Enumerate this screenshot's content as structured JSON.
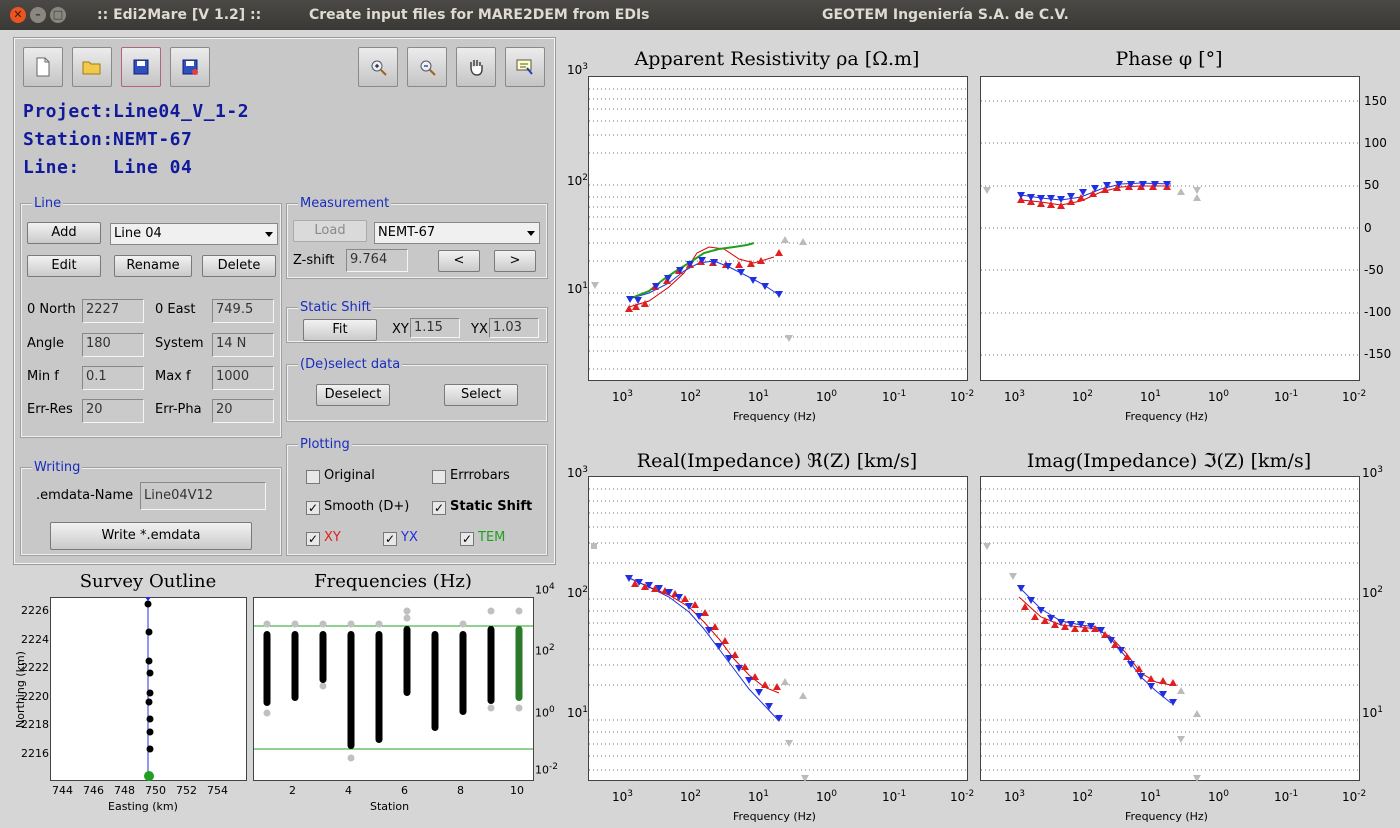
{
  "window": {
    "title_app": ":: Edi2Mare [V 1.2] ::",
    "title_desc": "Create input files for MARE2DEM from EDIs",
    "title_company": "GEOTEM Ingeniería S.A. de C.V."
  },
  "toolbar": {
    "icons": [
      "new-file-icon",
      "open-folder-icon",
      "save-icon",
      "save-as-icon",
      "zoom-in-icon",
      "zoom-out-icon",
      "pan-hand-icon",
      "data-cursor-icon"
    ]
  },
  "info": {
    "project_label": "Project:",
    "project_value": "Line04_V_1-2",
    "station_label": "Station:",
    "station_value": "NEMT-67",
    "line_label": "Line:",
    "line_value": "Line 04"
  },
  "line_group": {
    "title": "Line",
    "add": "Add",
    "edit": "Edit",
    "rename": "Rename",
    "delete": "Delete",
    "selected": "Line 04",
    "north_label": "0 North",
    "north": "2227",
    "east_label": "0 East",
    "east": "749.5",
    "angle_label": "Angle",
    "angle": "180",
    "system_label": "System",
    "system": "14 N",
    "minf_label": "Min f",
    "minf": "0.1",
    "maxf_label": "Max f",
    "maxf": "1000",
    "errres_label": "Err-Res",
    "errres": "20",
    "errpha_label": "Err-Pha",
    "errpha": "20"
  },
  "measurement": {
    "title": "Measurement",
    "load": "Load",
    "selected": "NEMT-67",
    "zshift_label": "Z-shift",
    "zshift": "9.764",
    "prev": "<",
    "next": ">"
  },
  "static_shift": {
    "title": "Static Shift",
    "fit": "Fit",
    "xy_label": "XY",
    "xy": "1.15",
    "yx_label": "YX",
    "yx": "1.03"
  },
  "deselect": {
    "title": "(De)select data",
    "deselect": "Deselect",
    "select": "Select"
  },
  "plotting": {
    "title": "Plotting",
    "original": "Original",
    "errorbars": "Errrobars",
    "smooth": "Smooth (D+)",
    "static": "Static Shift",
    "xy": "XY",
    "yx": "YX",
    "tem": "TEM",
    "colors": {
      "xy": "#e02020",
      "yx": "#2030e0",
      "tem": "#20a020"
    }
  },
  "writing": {
    "title": "Writing",
    "name_label": ".emdata-Name",
    "name": "Line04V12",
    "write": "Write *.emdata"
  },
  "plots": {
    "apparent_resistivity": {
      "title": "Apparent Resistivity   ρa   [Ω.m]",
      "xlabel": "Frequency (Hz)",
      "y_ticks": [
        "10",
        "10",
        "10"
      ],
      "y_exps": [
        "3",
        "2",
        "1"
      ]
    },
    "phase": {
      "title": "Phase   φ   [°]",
      "xlabel": "Frequency (Hz)",
      "y_ticks": [
        "150",
        "100",
        "50",
        "0",
        "-50",
        "-100",
        "-150"
      ]
    },
    "real_impedance": {
      "title": "Real(Impedance)   ℜ(Z)   [km/s]",
      "xlabel": "Frequency (Hz)",
      "y_ticks": [
        "10",
        "10",
        "10"
      ],
      "y_exps": [
        "3",
        "2",
        "1"
      ]
    },
    "imag_impedance": {
      "title": "Imag(Impedance)   ℑ(Z)   [km/s]",
      "xlabel": "Frequency (Hz)",
      "y_ticks": [
        "10",
        "10",
        "10"
      ],
      "y_exps": [
        "3",
        "2",
        "1"
      ]
    },
    "x_ticks": [
      "10",
      "10",
      "10",
      "10",
      "10",
      "10"
    ],
    "x_exps": [
      "3",
      "2",
      "1",
      "0",
      "-1",
      "-2"
    ],
    "survey": {
      "title": "Survey Outline",
      "xlabel": "Easting (km)",
      "ylabel": "Northing (km)",
      "x_ticks": [
        "744",
        "746",
        "748",
        "750",
        "752",
        "754"
      ],
      "y_ticks": [
        "2226",
        "2224",
        "2222",
        "2220",
        "2218",
        "2216"
      ]
    },
    "frequencies": {
      "title": "Frequencies (Hz)",
      "xlabel": "Station",
      "x_ticks": [
        "2",
        "4",
        "6",
        "8",
        "10"
      ],
      "y_ticks": [
        "10",
        "10",
        "10",
        "10"
      ],
      "y_exps": [
        "4",
        "2",
        "0",
        "-2"
      ]
    }
  }
}
